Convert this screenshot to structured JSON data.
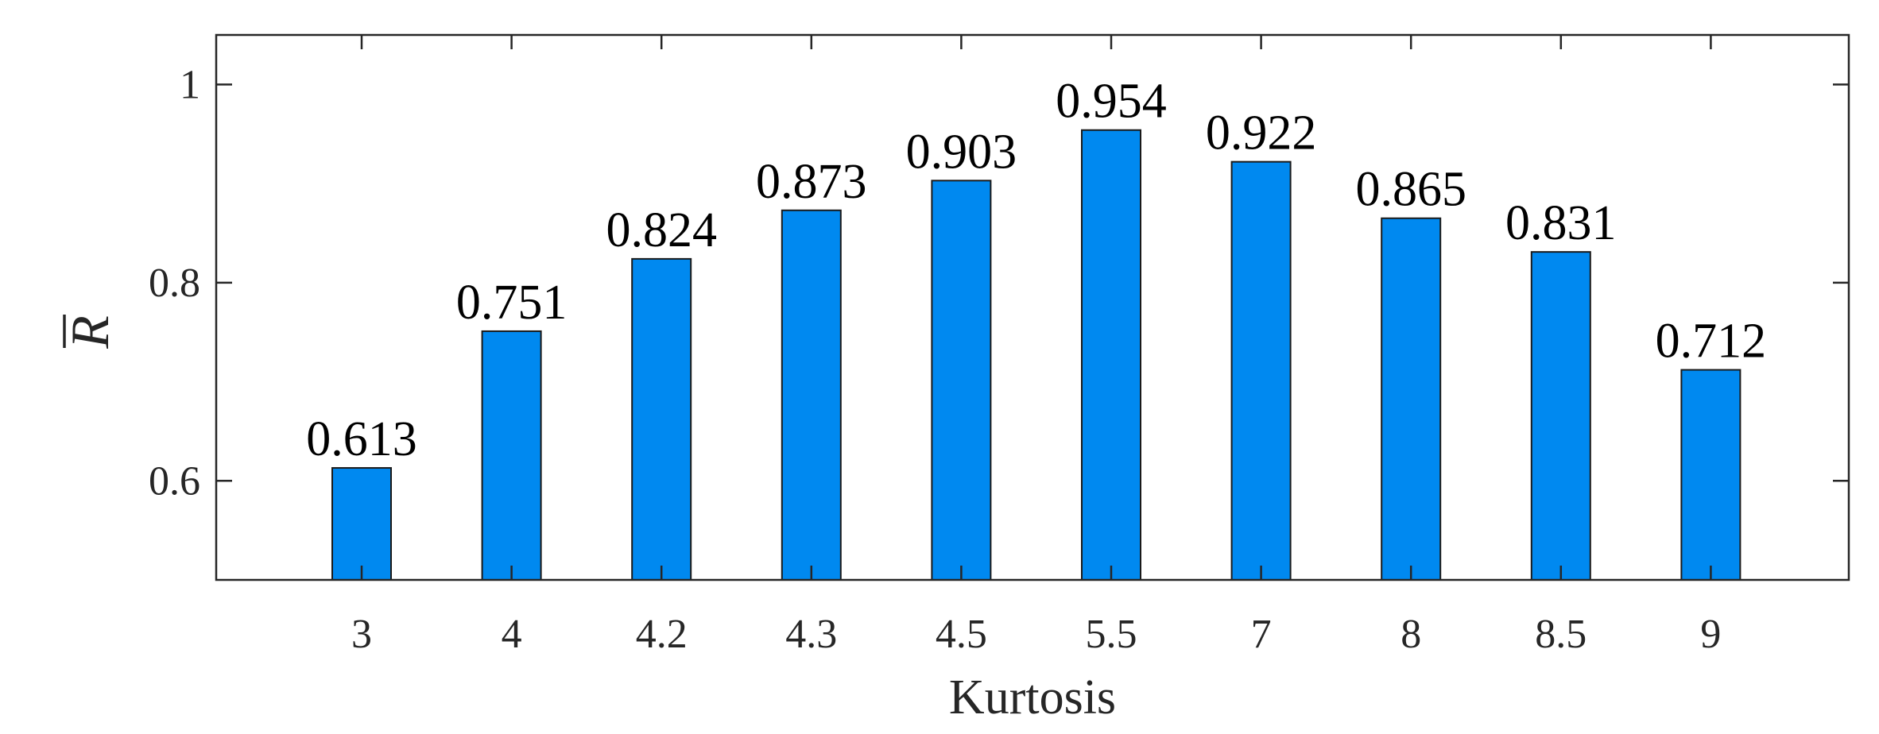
{
  "chart_data": {
    "type": "bar",
    "categories": [
      "3",
      "4",
      "4.2",
      "4.3",
      "4.5",
      "5.5",
      "7",
      "8",
      "8.5",
      "9"
    ],
    "values": [
      0.613,
      0.751,
      0.824,
      0.873,
      0.903,
      0.954,
      0.922,
      0.865,
      0.831,
      0.712
    ],
    "data_labels": [
      "0.613",
      "0.751",
      "0.824",
      "0.873",
      "0.903",
      "0.954",
      "0.922",
      "0.865",
      "0.831",
      "0.712"
    ],
    "title": "",
    "xlabel": "Kurtosis",
    "ylabel": "R",
    "ylabel_overline": true,
    "ylim": [
      0.5,
      1.05
    ],
    "yticks": [
      0.6,
      0.8,
      1.0
    ],
    "ytick_labels": [
      "0.6",
      "0.8",
      "1"
    ],
    "grid": false,
    "legend": "none",
    "bar_color": "#0089f0",
    "bar_edge_color": "#1a1a1a"
  }
}
